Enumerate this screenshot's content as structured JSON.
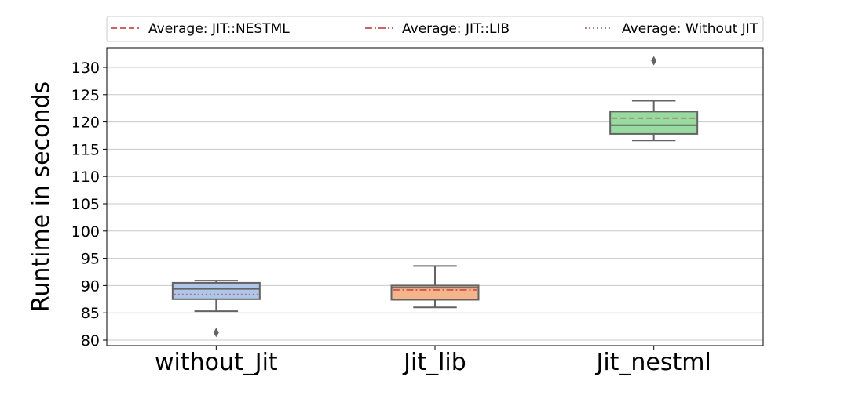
{
  "chart_data": {
    "type": "box",
    "title": "",
    "xlabel": "",
    "ylabel": "Runtime in seconds",
    "ylim": [
      79,
      140
    ],
    "yticks": [
      80,
      85,
      90,
      95,
      100,
      105,
      110,
      115,
      120,
      125,
      130
    ],
    "grid": "y",
    "legend_position": "top",
    "categories": [
      "without_Jit",
      "Jit_lib",
      "Jit_nestml"
    ],
    "boxes": [
      {
        "category": "without_Jit",
        "whisker_low": 85.3,
        "q1": 87.5,
        "median": 89.4,
        "q3": 90.5,
        "whisker_high": 90.9,
        "mean": 88.4,
        "outliers": [
          81.4
        ],
        "color": "#aec7e8"
      },
      {
        "category": "Jit_lib",
        "whisker_low": 86.0,
        "q1": 87.4,
        "median": 89.6,
        "q3": 90.0,
        "whisker_high": 93.6,
        "mean": 89.2,
        "outliers": [],
        "color": "#f5b48a"
      },
      {
        "category": "Jit_nestml",
        "whisker_low": 116.6,
        "q1": 117.8,
        "median": 119.4,
        "q3": 121.9,
        "whisker_high": 123.9,
        "mean": 120.7,
        "outliers": [
          131.2
        ],
        "color": "#98dba0"
      }
    ],
    "legend": [
      {
        "label": "Average: JIT::NESTML",
        "style": "dashed",
        "color": "#c44e52"
      },
      {
        "label": "Average: JIT::LIB",
        "style": "dashdot",
        "color": "#c44e52"
      },
      {
        "label": "Average: Without JIT",
        "style": "dotted",
        "color": "#b06b8a"
      }
    ]
  }
}
